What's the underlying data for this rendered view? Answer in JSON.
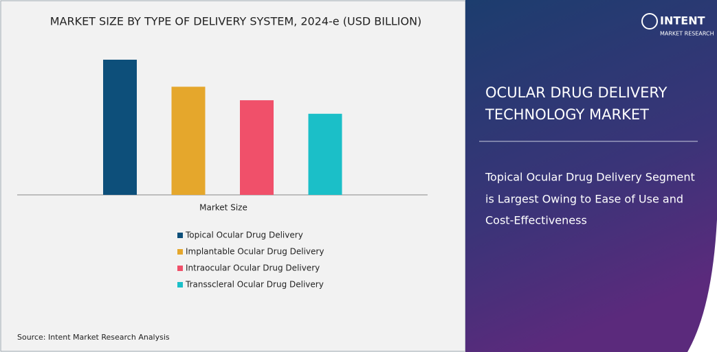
{
  "chart_data": {
    "type": "bar",
    "title": "MARKET SIZE BY TYPE OF DELIVERY SYSTEM, 2024-e (USD BILLION)",
    "categories": [
      "Market Size"
    ],
    "series": [
      {
        "name": "Topical Ocular Drug Delivery",
        "color": "#0d4f7a",
        "values": [
          10
        ]
      },
      {
        "name": "Implantable Ocular Drug Delivery",
        "color": "#e5a72c",
        "values": [
          8
        ]
      },
      {
        "name": "Intraocular Ocular Drug Delivery",
        "color": "#f0506a",
        "values": [
          7
        ]
      },
      {
        "name": "Transscleral Ocular Drug Delivery",
        "color": "#1bbfc8",
        "values": [
          6
        ]
      }
    ]
  },
  "source": "Source: Intent Market Research Analysis",
  "logo": {
    "name": "INTENT",
    "tagline": "MARKET RESEARCH"
  },
  "panel": {
    "heading": [
      "OCULAR DRUG DELIVERY",
      "TECHNOLOGY MARKET"
    ],
    "summary": [
      "Topical Ocular Drug Delivery Segment",
      "is Largest Owing to Ease of Use and",
      "Cost-Effectiveness"
    ]
  }
}
